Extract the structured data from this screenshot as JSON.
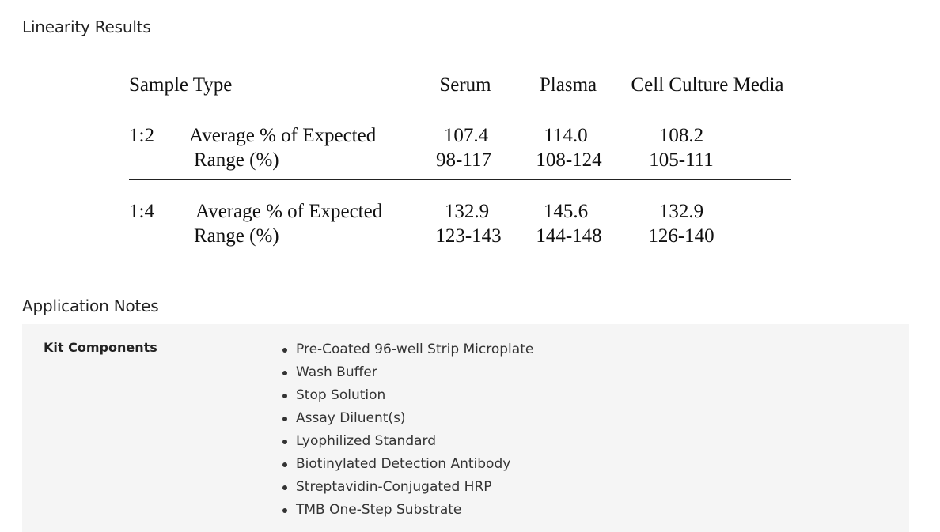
{
  "sections": {
    "linearity_title": "Linearity Results",
    "notes_title": "Application Notes"
  },
  "linearity_table": {
    "header": {
      "sample_type": "Sample Type",
      "serum": "Serum",
      "plasma": "Plasma",
      "cell_culture_media": "Cell Culture Media"
    },
    "rows": [
      {
        "dilution": "1:2",
        "average_label": "Average % of Expected",
        "range_label": "Range (%)",
        "serum_avg": "107.4",
        "serum_range": "98-117",
        "plasma_avg": "114.0",
        "plasma_range": "108-124",
        "ccm_avg": "108.2",
        "ccm_range": "105-111"
      },
      {
        "dilution": "1:4",
        "average_label": "Average % of Expected",
        "range_label": "Range (%)",
        "serum_avg": "132.9",
        "serum_range": "123-143",
        "plasma_avg": "145.6",
        "plasma_range": "144-148",
        "ccm_avg": "132.9",
        "ccm_range": "126-140"
      }
    ]
  },
  "application_notes": {
    "kit_components_label": "Kit Components",
    "kit_components": [
      "Pre-Coated 96-well Strip Microplate",
      "Wash Buffer",
      "Stop Solution",
      "Assay Diluent(s)",
      "Lyophilized Standard",
      "Biotinylated Detection Antibody",
      "Streptavidin-Conjugated HRP",
      "TMB One-Step Substrate"
    ]
  }
}
